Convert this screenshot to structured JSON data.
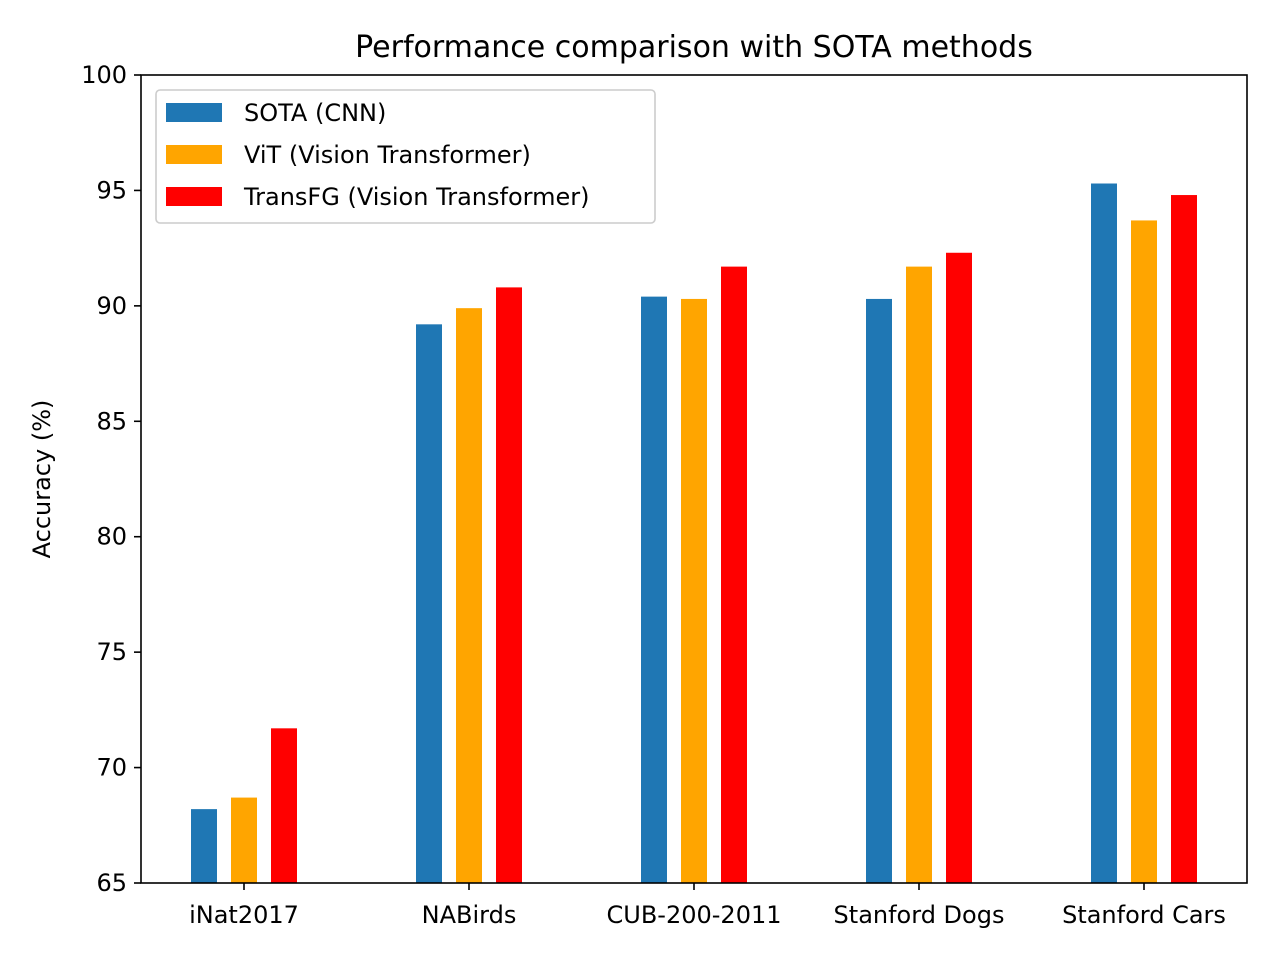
{
  "chart_data": {
    "type": "bar",
    "title": "Performance comparison with SOTA methods",
    "xlabel": "",
    "ylabel": "Accuracy (%)",
    "ylim": [
      65,
      100
    ],
    "yticks": [
      "65",
      "70",
      "75",
      "80",
      "85",
      "90",
      "95",
      "100"
    ],
    "categories": [
      "iNat2017",
      "NABirds",
      "CUB-200-2011",
      "Stanford Dogs",
      "Stanford Cars"
    ],
    "series": [
      {
        "name": "SOTA (CNN)",
        "color": "#1f77b4",
        "values": [
          68.2,
          89.2,
          90.4,
          90.3,
          95.3
        ]
      },
      {
        "name": "ViT (Vision Transformer)",
        "color": "#ffa500",
        "values": [
          68.7,
          89.9,
          90.3,
          91.7,
          93.7
        ]
      },
      {
        "name": "TransFG (Vision Transformer)",
        "color": "#ff0000",
        "values": [
          71.7,
          90.8,
          91.7,
          92.3,
          94.8
        ]
      }
    ],
    "legend_position": "top-left",
    "grid": false
  }
}
